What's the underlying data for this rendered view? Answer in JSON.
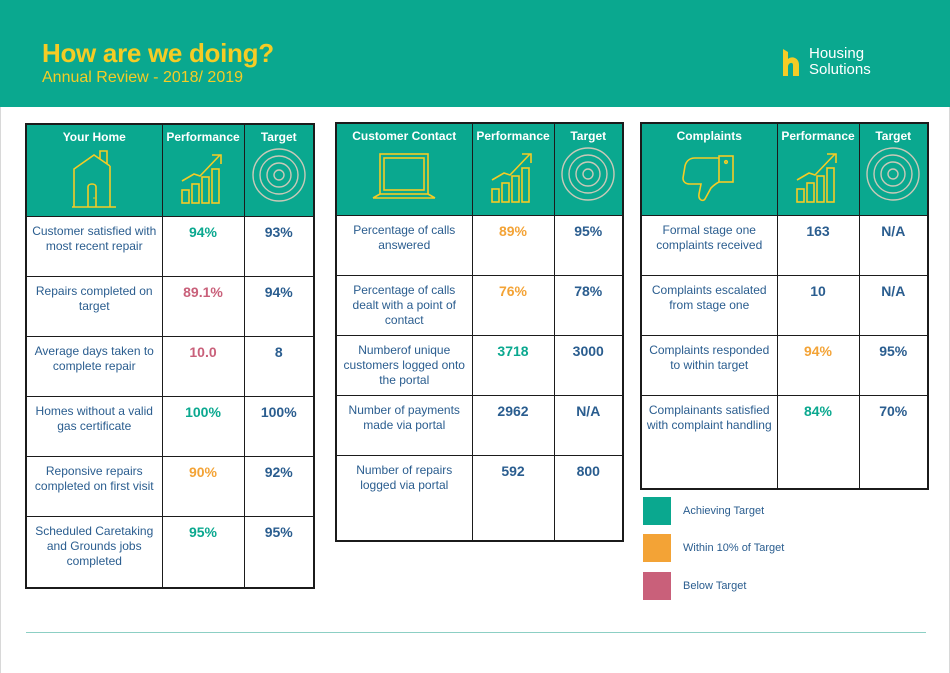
{
  "header": {
    "title": "How are we doing?",
    "subtitle": "Annual Review - 2018/ 2019",
    "logo_line1": "Housing",
    "logo_line2": "Solutions",
    "background": "#0aa88f",
    "title_color": "#f5cc25"
  },
  "tables": [
    {
      "heading": "Your Home",
      "icon": "house-icon",
      "performance_heading": "Performance",
      "target_heading": "Target",
      "rows": [
        {
          "label": "Customer satisfied with most recent repair",
          "performance": "94%",
          "target": "93%",
          "status": "green"
        },
        {
          "label": "Repairs completed on target",
          "performance": "89.1%",
          "target": "94%",
          "status": "red"
        },
        {
          "label": "Average days taken to complete repair",
          "performance": "10.0",
          "target": "8",
          "status": "red"
        },
        {
          "label": "Homes without a valid gas certificate",
          "performance": "100%",
          "target": "100%",
          "status": "green"
        },
        {
          "label": "Reponsive repairs completed on first visit",
          "performance": "90%",
          "target": "92%",
          "status": "amber"
        },
        {
          "label": "Scheduled Caretaking and Grounds jobs completed",
          "performance": "95%",
          "target": "95%",
          "status": "green"
        }
      ]
    },
    {
      "heading": "Customer Contact",
      "icon": "laptop-icon",
      "performance_heading": "Performance",
      "target_heading": "Target",
      "rows": [
        {
          "label": "Percentage of calls answered",
          "performance": "89%",
          "target": "95%",
          "status": "amber"
        },
        {
          "label": "Percentage of calls dealt with a point of contact",
          "performance": "76%",
          "target": "78%",
          "status": "amber"
        },
        {
          "label": "Numberof unique customers logged onto the portal",
          "performance": "3718",
          "target": "3000",
          "status": "green"
        },
        {
          "label": "Number of payments made via portal",
          "performance": "2962",
          "target": "N/A",
          "status": "blue"
        },
        {
          "label": "Number of repairs logged via portal",
          "performance": "592",
          "target": "800",
          "status": "blue"
        }
      ]
    },
    {
      "heading": "Complaints",
      "icon": "thumbs-down-icon",
      "performance_heading": "Performance",
      "target_heading": "Target",
      "rows": [
        {
          "label": "Formal stage one complaints received",
          "performance": "163",
          "target": "N/A",
          "status": "blue"
        },
        {
          "label": "Complaints escalated from stage one",
          "performance": "10",
          "target": "N/A",
          "status": "blue"
        },
        {
          "label": "Complaints responded to within target",
          "performance": "94%",
          "target": "95%",
          "status": "amber"
        },
        {
          "label": "Complainants satisfied with complaint handling",
          "performance": "84%",
          "target": "70%",
          "status": "green"
        }
      ]
    }
  ],
  "legend": [
    {
      "label": "Achieving Target",
      "color": "#0aa88f"
    },
    {
      "label": "Within 10% of Target",
      "color": "#f3a336"
    },
    {
      "label": "Below Target",
      "color": "#c9607a"
    }
  ]
}
